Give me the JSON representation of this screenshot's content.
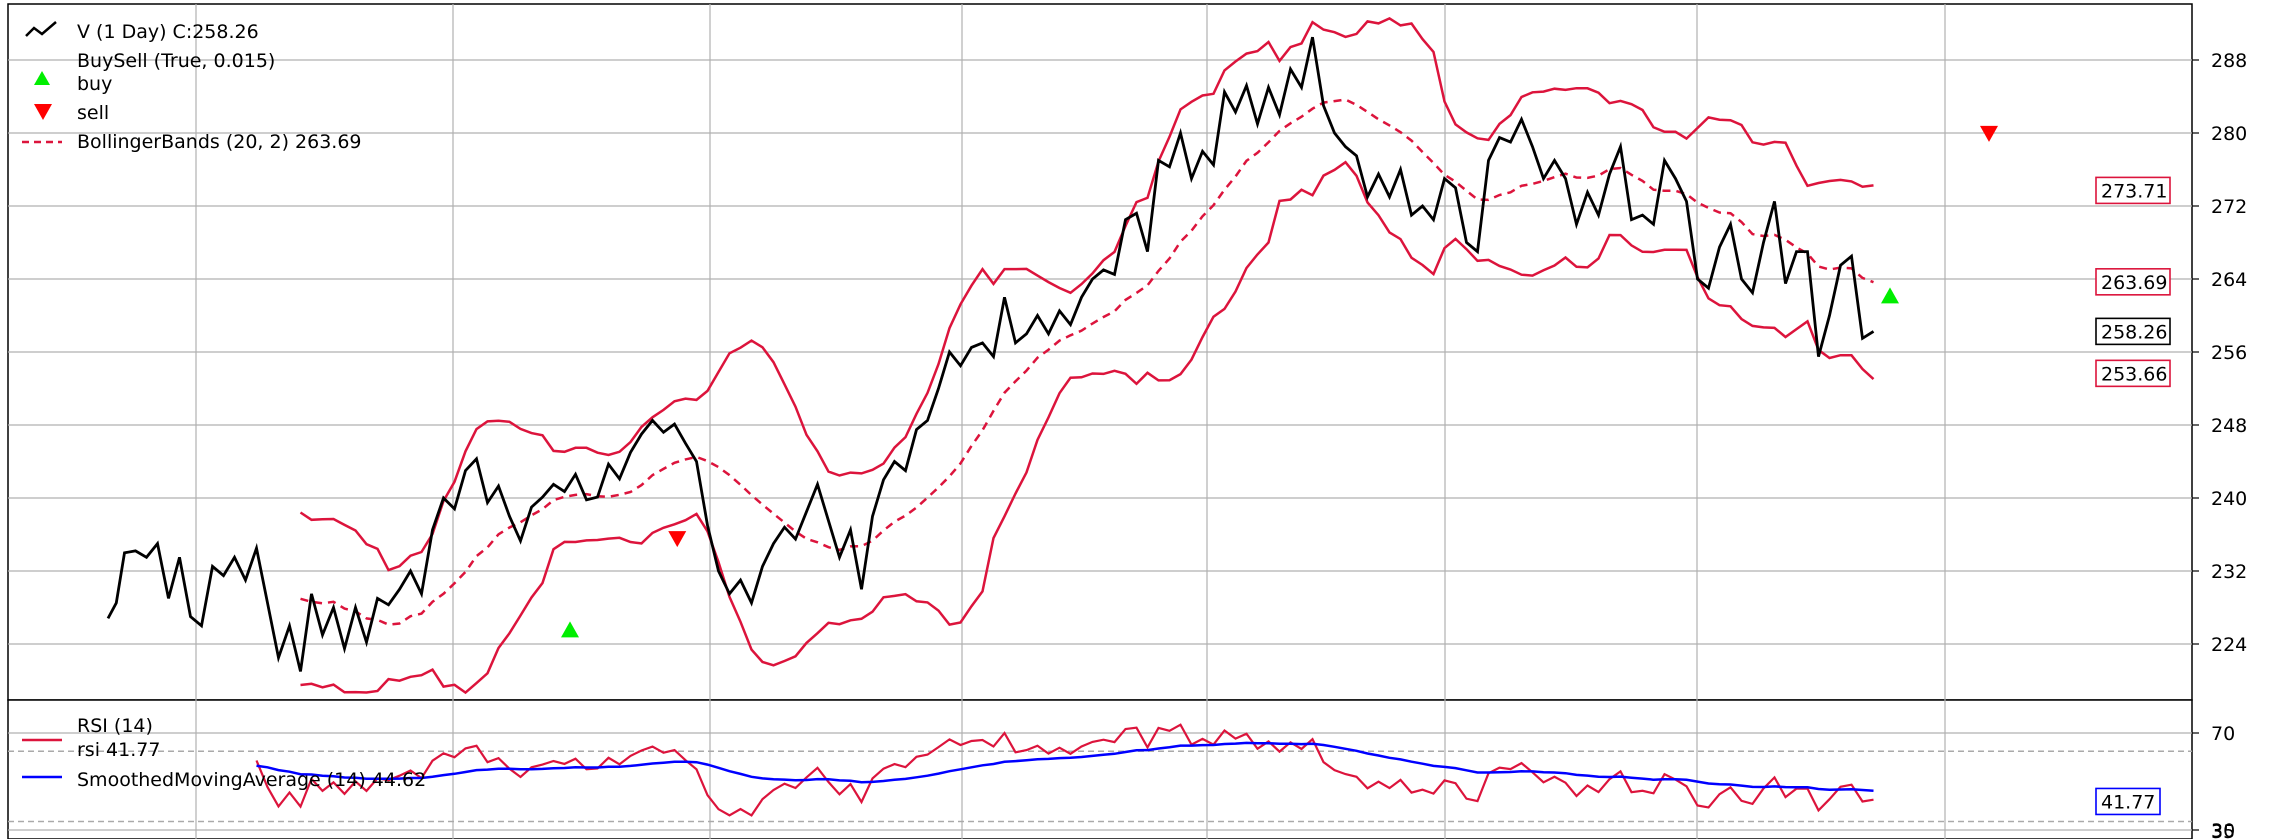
{
  "chart_data": [
    {
      "type": "line",
      "title": "",
      "ylim": [
        218,
        294
      ],
      "yticks": [
        224,
        232,
        240,
        248,
        256,
        264,
        272,
        280,
        288
      ],
      "grid": true,
      "legend_placement": "top-left",
      "legend": [
        {
          "label": "V (1 Day) C:258.26",
          "style": "line",
          "color": "#000000"
        },
        {
          "label": "BuySell (True, 0.015)",
          "style": "marker-up",
          "color": "#00ee00"
        },
        {
          "label": "buy",
          "style": "marker-up",
          "color": "#00ee00"
        },
        {
          "label": "sell",
          "style": "marker-down",
          "color": "#ff0000"
        },
        {
          "label": "BollingerBands (20, 2) 263.69",
          "style": "dashed",
          "color": "#dc143c"
        }
      ],
      "series": [
        {
          "name": "V (1 Day)",
          "color": "#000000",
          "x": [
            0,
            3,
            6,
            10,
            14,
            18,
            22,
            26,
            30,
            34,
            38,
            42,
            46,
            50,
            54,
            58,
            62,
            66,
            70,
            74,
            78,
            82,
            86,
            90,
            94,
            98,
            102,
            106,
            110,
            114,
            118,
            122,
            126,
            130,
            134,
            138,
            142,
            146,
            150,
            154,
            158,
            162,
            166,
            170,
            174,
            178,
            182,
            186,
            190,
            194,
            198,
            202,
            206,
            210,
            214,
            218,
            222,
            226,
            230,
            234,
            238,
            242,
            246,
            250,
            254,
            258,
            262,
            266,
            270,
            274,
            278,
            282,
            286,
            290,
            294,
            298,
            302,
            306,
            310,
            314,
            318,
            322,
            326,
            330,
            334,
            338,
            342,
            346,
            350,
            354,
            358,
            362,
            366,
            370,
            374,
            378,
            382,
            386,
            390,
            394,
            398,
            402,
            406,
            410,
            414
          ],
          "values": [
            226.8,
            228.5,
            234,
            234.2,
            233.5,
            235,
            229,
            233.5,
            227,
            226,
            232.5,
            231.5,
            233.5,
            231,
            234.5,
            228.5,
            222.5,
            226,
            221,
            229.5,
            225,
            228,
            223.5,
            228,
            224.2,
            229,
            228.3,
            230,
            232,
            229.5,
            236.5,
            240,
            238.8,
            243,
            244.3,
            239.5,
            241.3,
            238,
            235.3,
            239,
            240.1,
            241.5,
            240.7,
            242.6,
            239.8,
            240.1,
            243.7,
            242.1,
            245,
            247,
            248.5,
            247.2,
            248.1,
            246,
            244,
            237,
            232,
            229.5,
            231,
            228.5,
            232.5,
            235,
            236.8,
            235.5,
            238.5,
            241.5,
            237.5,
            233.5,
            236.5,
            230,
            238,
            242,
            244,
            243,
            247.5,
            248.5,
            252,
            256,
            254.5,
            256.5,
            257,
            255.5,
            262,
            257,
            258,
            260,
            258,
            260.5,
            259,
            262,
            264,
            265,
            264.5,
            270.5,
            271.2,
            267,
            277,
            276.3,
            280,
            275,
            278,
            276.5,
            284.5,
            282.3,
            285.2
          ],
          "x_ext": [
            418,
            422,
            426,
            430,
            434,
            438,
            442,
            446,
            450,
            454,
            458,
            462,
            466,
            470,
            474,
            478,
            482,
            486,
            490,
            494,
            498,
            502,
            506,
            510,
            514,
            518,
            522,
            526,
            530,
            534,
            538,
            542,
            546,
            550,
            554,
            558,
            562,
            566,
            570,
            574,
            578,
            582,
            586,
            590,
            594,
            598,
            602,
            606,
            610,
            614,
            618,
            622,
            626,
            630,
            634,
            638,
            642,
            646,
            650,
            654,
            658,
            662,
            666,
            670,
            674,
            678,
            682,
            686,
            690,
            694,
            698,
            702,
            706,
            710,
            714,
            718,
            722,
            726,
            730,
            734,
            738
          ],
          "values_ext": [
            281,
            285,
            282,
            287,
            285,
            290.5,
            283,
            280,
            278.5,
            277.5,
            273,
            275.5,
            273,
            276,
            271,
            272,
            270.5,
            275,
            274,
            268,
            267,
            277,
            279.5,
            279,
            281.5,
            278.5,
            275,
            277,
            275,
            270,
            273.5,
            271,
            275.5,
            278.5,
            270.5,
            271,
            270,
            277,
            275,
            272.5,
            264,
            263,
            267.5,
            270,
            264,
            262.5,
            268,
            272.5,
            263.5,
            267,
            267,
            255.5,
            260,
            265.5,
            266.5,
            257.5,
            258.26,
            258.26,
            258.26,
            258.26,
            258.26,
            258.26,
            258.26,
            258.26,
            258.26,
            258.26,
            258.26,
            258.26,
            258.26,
            258.26,
            258.26,
            258.26,
            258.26,
            258.26,
            258.26,
            258.26,
            258.26,
            258.26,
            258.26,
            258.26,
            258.26
          ]
        }
      ],
      "last_value_labels": [
        {
          "text": "273.71",
          "value": 273.71,
          "color": "#dc143c"
        },
        {
          "text": "263.69",
          "value": 263.69,
          "color": "#dc143c"
        },
        {
          "text": "258.26",
          "value": 258.26,
          "color": "#000000"
        },
        {
          "text": "253.66",
          "value": 253.66,
          "color": "#dc143c"
        }
      ],
      "buy_markers": [
        {
          "x": 168,
          "value": 225.6
        },
        {
          "x": 648,
          "value": 262.2
        }
      ],
      "sell_markers": [
        {
          "x": 207,
          "value": 235.5
        },
        {
          "x": 684,
          "value": 279.9
        }
      ]
    },
    {
      "type": "line",
      "title": "",
      "ylim": [
        30,
        80
      ],
      "yticks": [
        30,
        70
      ],
      "grid": true,
      "legend_placement": "top-left",
      "legend": [
        {
          "label": "RSI (14)",
          "style": "line",
          "color": "#dc143c"
        },
        {
          "label": "rsi 41.77",
          "style": "none",
          "color": "#dc143c"
        },
        {
          "label": "SmoothedMovingAverage (14) 44.62",
          "style": "line",
          "color": "#0000ff"
        }
      ],
      "hlines": [
        {
          "value": 62.5,
          "style": "dashed",
          "color": "#aaaaaa"
        },
        {
          "value": 33.5,
          "style": "dashed",
          "color": "#aaaaaa"
        }
      ],
      "last_value_labels": [
        {
          "text": "41.77",
          "value": 41.77,
          "color": "#0000ff"
        }
      ]
    }
  ],
  "axis_labels": {
    "y_partial": "35"
  }
}
